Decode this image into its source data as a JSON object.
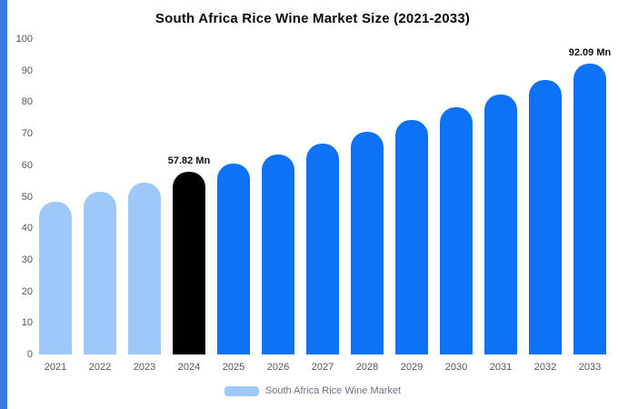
{
  "title": "South Africa Rice Wine Market Size (2021-2033)",
  "legend": {
    "label": "South Africa Rice Wine Market",
    "swatch_color": "#9ec8f7"
  },
  "colors": {
    "past_bar": "#9ec8f7",
    "highlight_bar": "#000000",
    "future_bar": "#0d72f5",
    "left_stripe": "#3c7ce0",
    "axis_text": "#555555",
    "title_text": "#0a0a0a"
  },
  "chart_data": {
    "type": "bar",
    "title": "South Africa Rice Wine Market Size (2021-2033)",
    "xlabel": "",
    "ylabel": "",
    "categories": [
      "2021",
      "2022",
      "2023",
      "2024",
      "2025",
      "2026",
      "2027",
      "2028",
      "2029",
      "2030",
      "2031",
      "2032",
      "2033"
    ],
    "values": [
      48.5,
      51.5,
      54.5,
      57.82,
      60.5,
      63.5,
      67,
      70.5,
      74.5,
      78.5,
      82.5,
      87,
      92.09
    ],
    "bar_colors": [
      "#9ec8f7",
      "#9ec8f7",
      "#9ec8f7",
      "#000000",
      "#0d72f5",
      "#0d72f5",
      "#0d72f5",
      "#0d72f5",
      "#0d72f5",
      "#0d72f5",
      "#0d72f5",
      "#0d72f5",
      "#0d72f5"
    ],
    "annotations": [
      {
        "index": 3,
        "text": "57.82 Mn"
      },
      {
        "index": 12,
        "text": "92.09 Mn"
      }
    ],
    "ylim": [
      0,
      100
    ],
    "yticks": [
      0,
      10,
      20,
      30,
      40,
      50,
      60,
      70,
      80,
      90,
      100
    ],
    "grid": false,
    "legend_position": "bottom",
    "unit": "Mn"
  }
}
